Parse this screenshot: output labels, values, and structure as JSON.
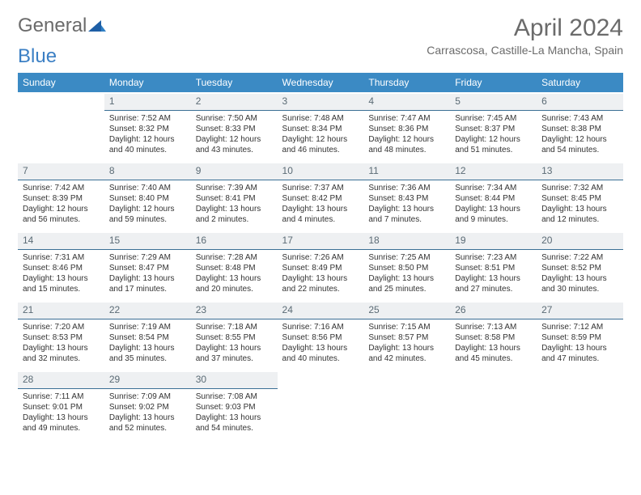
{
  "brand": {
    "part1": "General",
    "part2": "Blue"
  },
  "title": "April 2024",
  "location": "Carrascosa, Castille-La Mancha, Spain",
  "colors": {
    "header_bg": "#3b8ac4",
    "header_text": "#ffffff",
    "daynum_bg": "#eef0f2",
    "daynum_text": "#5b6b75",
    "daynum_border": "#3b6f95",
    "body_text": "#333333",
    "title_text": "#6b6b6b",
    "brand_gray": "#6b6b6b",
    "brand_blue": "#3b7fc4"
  },
  "weekdays": [
    "Sunday",
    "Monday",
    "Tuesday",
    "Wednesday",
    "Thursday",
    "Friday",
    "Saturday"
  ],
  "weeks": [
    [
      null,
      {
        "n": "1",
        "sr": "7:52 AM",
        "ss": "8:32 PM",
        "dl": "12 hours and 40 minutes."
      },
      {
        "n": "2",
        "sr": "7:50 AM",
        "ss": "8:33 PM",
        "dl": "12 hours and 43 minutes."
      },
      {
        "n": "3",
        "sr": "7:48 AM",
        "ss": "8:34 PM",
        "dl": "12 hours and 46 minutes."
      },
      {
        "n": "4",
        "sr": "7:47 AM",
        "ss": "8:36 PM",
        "dl": "12 hours and 48 minutes."
      },
      {
        "n": "5",
        "sr": "7:45 AM",
        "ss": "8:37 PM",
        "dl": "12 hours and 51 minutes."
      },
      {
        "n": "6",
        "sr": "7:43 AM",
        "ss": "8:38 PM",
        "dl": "12 hours and 54 minutes."
      }
    ],
    [
      {
        "n": "7",
        "sr": "7:42 AM",
        "ss": "8:39 PM",
        "dl": "12 hours and 56 minutes."
      },
      {
        "n": "8",
        "sr": "7:40 AM",
        "ss": "8:40 PM",
        "dl": "12 hours and 59 minutes."
      },
      {
        "n": "9",
        "sr": "7:39 AM",
        "ss": "8:41 PM",
        "dl": "13 hours and 2 minutes."
      },
      {
        "n": "10",
        "sr": "7:37 AM",
        "ss": "8:42 PM",
        "dl": "13 hours and 4 minutes."
      },
      {
        "n": "11",
        "sr": "7:36 AM",
        "ss": "8:43 PM",
        "dl": "13 hours and 7 minutes."
      },
      {
        "n": "12",
        "sr": "7:34 AM",
        "ss": "8:44 PM",
        "dl": "13 hours and 9 minutes."
      },
      {
        "n": "13",
        "sr": "7:32 AM",
        "ss": "8:45 PM",
        "dl": "13 hours and 12 minutes."
      }
    ],
    [
      {
        "n": "14",
        "sr": "7:31 AM",
        "ss": "8:46 PM",
        "dl": "13 hours and 15 minutes."
      },
      {
        "n": "15",
        "sr": "7:29 AM",
        "ss": "8:47 PM",
        "dl": "13 hours and 17 minutes."
      },
      {
        "n": "16",
        "sr": "7:28 AM",
        "ss": "8:48 PM",
        "dl": "13 hours and 20 minutes."
      },
      {
        "n": "17",
        "sr": "7:26 AM",
        "ss": "8:49 PM",
        "dl": "13 hours and 22 minutes."
      },
      {
        "n": "18",
        "sr": "7:25 AM",
        "ss": "8:50 PM",
        "dl": "13 hours and 25 minutes."
      },
      {
        "n": "19",
        "sr": "7:23 AM",
        "ss": "8:51 PM",
        "dl": "13 hours and 27 minutes."
      },
      {
        "n": "20",
        "sr": "7:22 AM",
        "ss": "8:52 PM",
        "dl": "13 hours and 30 minutes."
      }
    ],
    [
      {
        "n": "21",
        "sr": "7:20 AM",
        "ss": "8:53 PM",
        "dl": "13 hours and 32 minutes."
      },
      {
        "n": "22",
        "sr": "7:19 AM",
        "ss": "8:54 PM",
        "dl": "13 hours and 35 minutes."
      },
      {
        "n": "23",
        "sr": "7:18 AM",
        "ss": "8:55 PM",
        "dl": "13 hours and 37 minutes."
      },
      {
        "n": "24",
        "sr": "7:16 AM",
        "ss": "8:56 PM",
        "dl": "13 hours and 40 minutes."
      },
      {
        "n": "25",
        "sr": "7:15 AM",
        "ss": "8:57 PM",
        "dl": "13 hours and 42 minutes."
      },
      {
        "n": "26",
        "sr": "7:13 AM",
        "ss": "8:58 PM",
        "dl": "13 hours and 45 minutes."
      },
      {
        "n": "27",
        "sr": "7:12 AM",
        "ss": "8:59 PM",
        "dl": "13 hours and 47 minutes."
      }
    ],
    [
      {
        "n": "28",
        "sr": "7:11 AM",
        "ss": "9:01 PM",
        "dl": "13 hours and 49 minutes."
      },
      {
        "n": "29",
        "sr": "7:09 AM",
        "ss": "9:02 PM",
        "dl": "13 hours and 52 minutes."
      },
      {
        "n": "30",
        "sr": "7:08 AM",
        "ss": "9:03 PM",
        "dl": "13 hours and 54 minutes."
      },
      null,
      null,
      null,
      null
    ]
  ],
  "labels": {
    "sunrise": "Sunrise:",
    "sunset": "Sunset:",
    "daylight": "Daylight:"
  }
}
